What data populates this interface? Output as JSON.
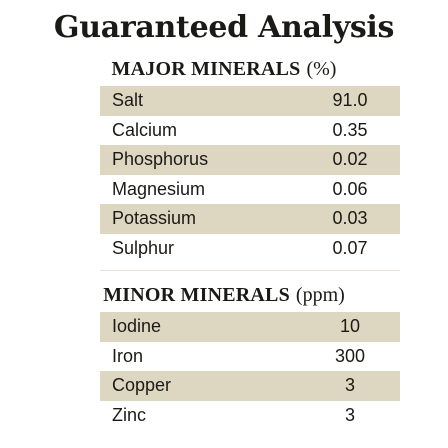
{
  "title": "Guaranteed Analysis",
  "major": {
    "heading": "MAJOR MINERALS",
    "unit": "(%)",
    "rows": [
      {
        "name": "Salt",
        "value": "91.0"
      },
      {
        "name": "Calcium",
        "value": "0.35"
      },
      {
        "name": "Phosphorus",
        "value": "0.02"
      },
      {
        "name": "Magnesium",
        "value": "0.06"
      },
      {
        "name": "Potassium",
        "value": "0.03"
      },
      {
        "name": "Sulphur",
        "value": "0.07"
      }
    ]
  },
  "minor": {
    "heading": "MINOR MINERALS",
    "unit": "(ppm)",
    "rows": [
      {
        "name": "Iodine",
        "value": "10"
      },
      {
        "name": "Iron",
        "value": "300"
      },
      {
        "name": "Copper",
        "value": "3"
      },
      {
        "name": "Zinc",
        "value": "3"
      }
    ]
  },
  "colors": {
    "row_shade": "#ddd6c0",
    "text": "#1c1a17"
  }
}
